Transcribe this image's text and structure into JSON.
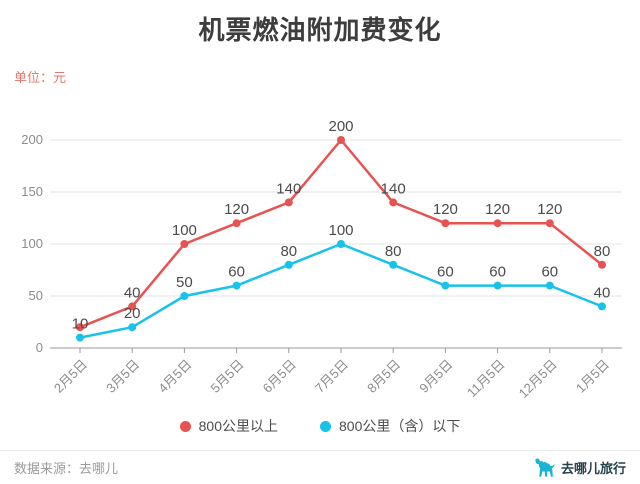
{
  "title": "机票燃油附加费变化",
  "unit_label": "单位：元",
  "colors": {
    "series_above": "#e85352",
    "series_below": "#17c3e8",
    "unit_label": "#e0776b",
    "axis_line": "#999999",
    "axis_text": "#8c8c8c",
    "gridline": "#e3e3e3",
    "point_label": "#4b4b4b",
    "brand": "#1ab5d6"
  },
  "chart_data": {
    "type": "line",
    "categories": [
      "2月5日",
      "3月5日",
      "4月5日",
      "5月5日",
      "6月5日",
      "7月5日",
      "8月5日",
      "9月5日",
      "11月5日",
      "12月5日",
      "1月5日"
    ],
    "series": [
      {
        "name": "800公里以上",
        "color": "#e85352",
        "values": [
          20,
          40,
          100,
          120,
          140,
          200,
          140,
          120,
          120,
          120,
          80
        ],
        "point_labels": [
          "",
          "40",
          "100",
          "120",
          "140",
          "200",
          "140",
          "120",
          "120",
          "120",
          "80"
        ]
      },
      {
        "name": "800公里（含）以下",
        "color": "#17c3e8",
        "values": [
          10,
          20,
          50,
          60,
          80,
          100,
          80,
          60,
          60,
          60,
          40
        ],
        "point_labels": [
          "10",
          "20",
          "50",
          "60",
          "80",
          "100",
          "80",
          "60",
          "60",
          "60",
          "40"
        ]
      }
    ],
    "ylim": [
      0,
      200
    ],
    "yticks": [
      0,
      50,
      100,
      150,
      200
    ],
    "grid": true,
    "legend_position": "bottom",
    "x_label_rotation": 45
  },
  "legend": {
    "items": [
      {
        "label": "800公里以上",
        "color": "#e85352"
      },
      {
        "label": "800公里（含）以下",
        "color": "#17c3e8"
      }
    ]
  },
  "footer": {
    "source": "数据来源：去哪儿",
    "brand": "去哪儿旅行"
  }
}
